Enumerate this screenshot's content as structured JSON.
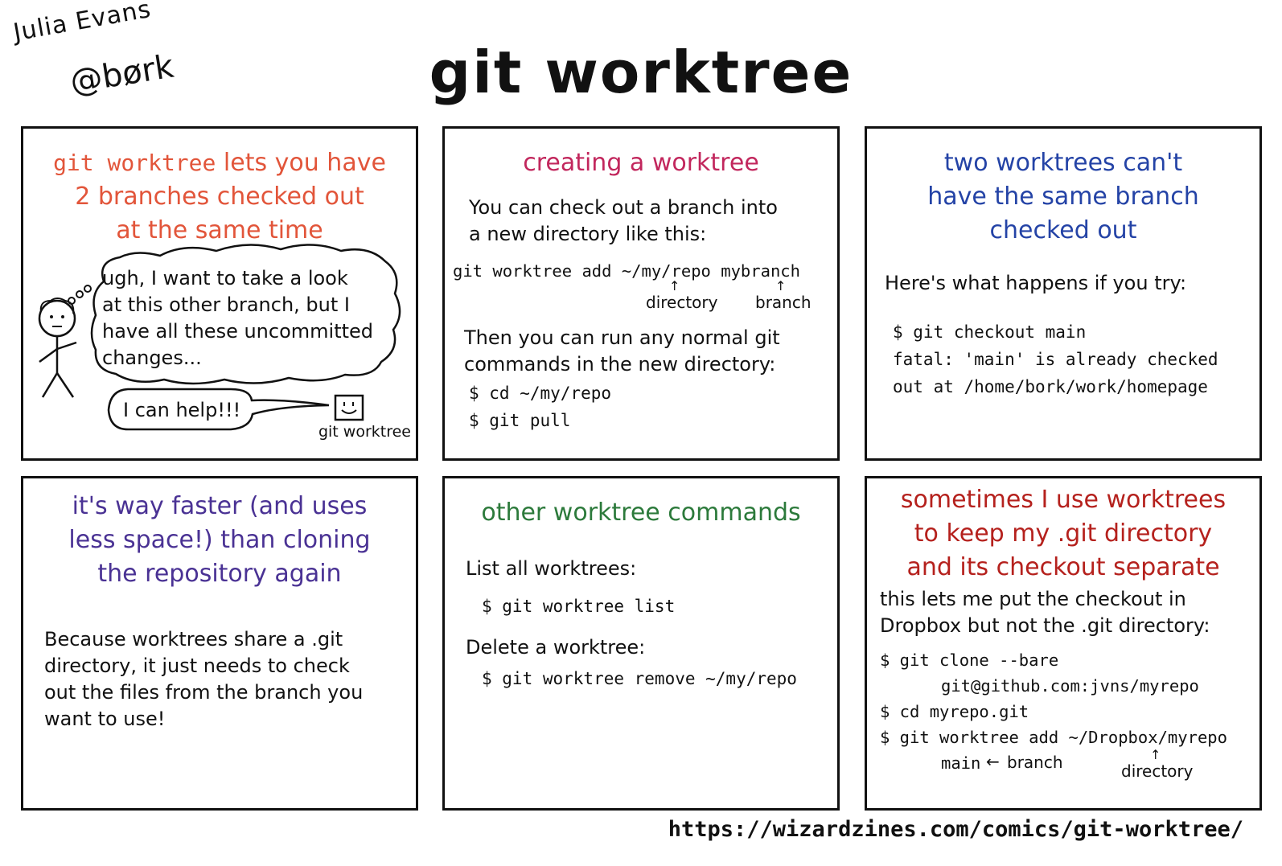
{
  "author": {
    "name": "Julia Evans",
    "handle": "@børk"
  },
  "title": "git worktree",
  "url": "https://wizardzines.com/comics/git-worktree/",
  "colors": {
    "orange": "#e2553a",
    "pink": "#c2275d",
    "blue": "#2443a6",
    "purple": "#4a3294",
    "green": "#2c7a3b",
    "red": "#b5211d"
  },
  "panel1": {
    "title_mono": "git worktree",
    "title_line1": "lets you have",
    "title_line2": "2 branches checked out",
    "title_line3": "at the same time",
    "thought_lines": [
      "ugh, I want to take a look",
      "at this other branch, but I",
      "have all these uncommitted",
      "changes..."
    ],
    "speech": "I can help!!!",
    "character_label": "git worktree"
  },
  "panel2": {
    "title": "creating a worktree",
    "text_lines": [
      "You can check out a branch into",
      "a new directory like this:"
    ],
    "command": "git worktree add ~/my/repo mybranch",
    "label_directory": "directory",
    "label_branch": "branch",
    "text2_lines": [
      "Then you can run any normal git",
      "commands in the new directory:"
    ],
    "code_lines": [
      "$ cd ~/my/repo",
      "$ git pull"
    ]
  },
  "panel3": {
    "title_lines": [
      "two worktrees can't",
      "have the same branch",
      "checked out"
    ],
    "text": "Here's what happens if you try:",
    "code_lines": [
      "$ git checkout main",
      "fatal: 'main' is already checked",
      "out at /home/bork/work/homepage"
    ]
  },
  "panel4": {
    "title_lines": [
      "it's way faster (and uses",
      "less space!) than cloning",
      "the repository again"
    ],
    "text_lines": [
      "Because worktrees share a .git",
      "directory, it just needs to check",
      "out the files from the branch you",
      "want to use!"
    ]
  },
  "panel5": {
    "title": "other worktree commands",
    "list_label": "List all worktrees:",
    "list_cmd": "$ git worktree list",
    "delete_label": "Delete a worktree:",
    "delete_cmd": "$ git worktree remove ~/my/repo"
  },
  "panel6": {
    "title_lines": [
      "sometimes I use worktrees",
      "to keep my .git directory",
      "and its checkout separate"
    ],
    "text_lines": [
      "this lets me put the checkout in",
      "Dropbox but not the .git directory:"
    ],
    "code_line1": "$ git clone --bare",
    "code_line2": "git@github.com:jvns/myrepo",
    "code_line3": "$ cd myrepo.git",
    "code_line4": "$ git worktree add ~/Dropbox/myrepo",
    "code_main": "main",
    "label_branch": "branch",
    "label_directory": "directory"
  }
}
